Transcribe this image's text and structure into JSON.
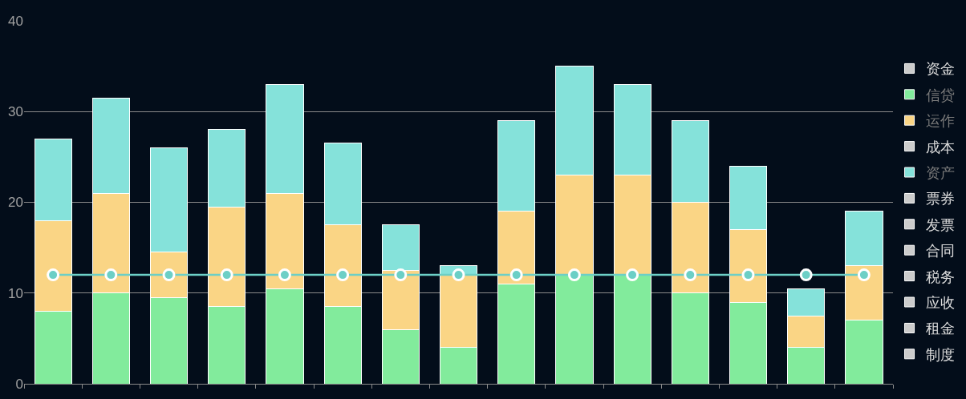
{
  "chart_data": {
    "type": "bar",
    "stacked": true,
    "categories": [
      null,
      null,
      null,
      null,
      null,
      null,
      null,
      null,
      null,
      null,
      null,
      null,
      null,
      null,
      null
    ],
    "series": [
      {
        "name": "资金",
        "color": "#cccccc",
        "values": [
          null,
          null,
          null,
          null,
          null,
          null,
          null,
          null,
          null,
          null,
          null,
          null,
          null,
          null,
          null
        ]
      },
      {
        "name": "信贷",
        "color": "#82eb9c",
        "values": [
          8,
          10,
          9.5,
          8.5,
          10.5,
          8.5,
          6,
          4,
          11,
          12,
          12,
          10,
          9,
          4,
          7
        ]
      },
      {
        "name": "运作",
        "color": "#fad585",
        "values": [
          10,
          11,
          5,
          11,
          10.5,
          9,
          6.5,
          8,
          8,
          11,
          11,
          10,
          8,
          3.5,
          6
        ]
      },
      {
        "name": "成本",
        "color": "#cccccc",
        "values": [
          null,
          null,
          null,
          null,
          null,
          null,
          null,
          null,
          null,
          null,
          null,
          null,
          null,
          null,
          null
        ]
      },
      {
        "name": "资产",
        "color": "#85e2da",
        "values": [
          9,
          10.5,
          11.5,
          8.5,
          12,
          9,
          5,
          1,
          10,
          12,
          10,
          9,
          7,
          3,
          6
        ]
      },
      {
        "name": "票券",
        "color": "#cccccc",
        "values": [
          null,
          null,
          null,
          null,
          null,
          null,
          null,
          null,
          null,
          null,
          null,
          null,
          null,
          null,
          null
        ]
      },
      {
        "name": "发票",
        "color": "#cccccc",
        "values": [
          null,
          null,
          null,
          null,
          null,
          null,
          null,
          null,
          null,
          null,
          null,
          null,
          null,
          null,
          null
        ]
      },
      {
        "name": "合同",
        "color": "#cccccc",
        "values": [
          null,
          null,
          null,
          null,
          null,
          null,
          null,
          null,
          null,
          null,
          null,
          null,
          null,
          null,
          null
        ]
      },
      {
        "name": "税务",
        "color": "#cccccc",
        "values": [
          null,
          null,
          null,
          null,
          null,
          null,
          null,
          null,
          null,
          null,
          null,
          null,
          null,
          null,
          null
        ]
      },
      {
        "name": "应收",
        "color": "#cccccc",
        "values": [
          null,
          null,
          null,
          null,
          null,
          null,
          null,
          null,
          null,
          null,
          null,
          null,
          null,
          null,
          null
        ]
      },
      {
        "name": "租金",
        "color": "#cccccc",
        "values": [
          null,
          null,
          null,
          null,
          null,
          null,
          null,
          null,
          null,
          null,
          null,
          null,
          null,
          null,
          null
        ]
      },
      {
        "name": "制度",
        "color": "#cccccc",
        "values": [
          null,
          null,
          null,
          null,
          null,
          null,
          null,
          null,
          null,
          null,
          null,
          null,
          null,
          null,
          null
        ]
      },
      {
        "type": "line",
        "color": "#6ccfc6",
        "marker": "circle",
        "values": [
          12,
          12,
          12,
          12,
          12,
          12,
          12,
          12,
          12,
          12,
          12,
          12,
          12,
          12,
          12
        ]
      }
    ],
    "ylim": [
      0,
      40
    ],
    "yticks": [
      0,
      10,
      20,
      30,
      40
    ],
    "grid": "y",
    "legend": "right",
    "tick_labels": "y"
  }
}
